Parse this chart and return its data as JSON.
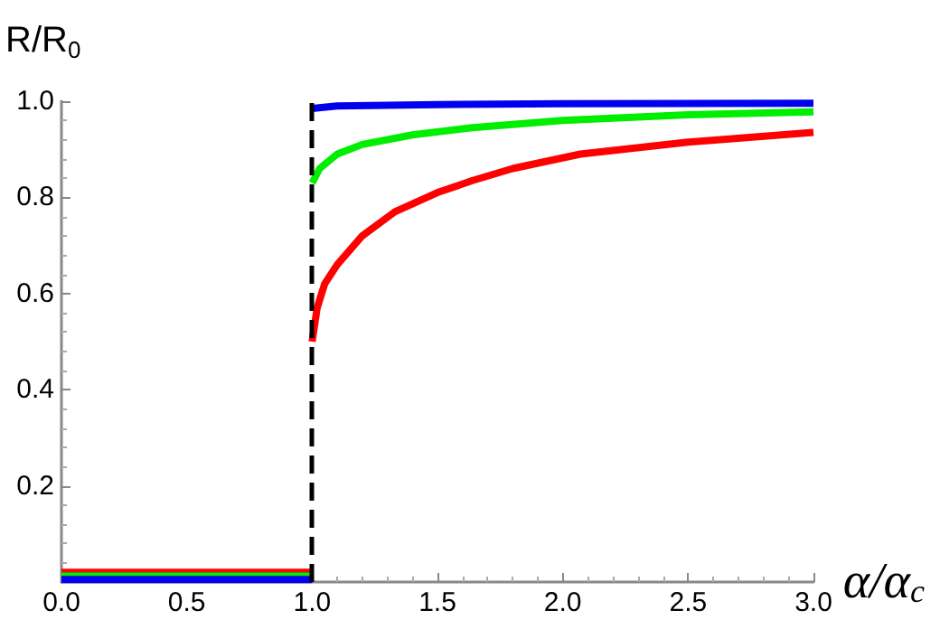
{
  "chart_data": {
    "type": "line",
    "xlabel": "α/α$_{c}$",
    "ylabel": "R/R$_{0}$",
    "xlim": [
      0,
      3
    ],
    "xticks": [
      {
        "value": 0,
        "label": "0.0"
      },
      0.5,
      {
        "value": 1,
        "label": "1.0"
      },
      1.5,
      {
        "value": 2,
        "label": "2.0"
      },
      2.5,
      {
        "value": 3,
        "label": "3.0"
      }
    ],
    "ylim": [
      0,
      1
    ],
    "yticks": [
      0.2,
      0.4,
      0.6,
      0.8,
      {
        "value": 1,
        "label": "1.0"
      }
    ],
    "grid": false,
    "marker": "none",
    "line_style": "solid",
    "series": [
      {
        "color": "#ff0000",
        "x": [
          0,
          1
        ],
        "values": [
          0.02,
          0.02
        ]
      },
      {
        "color": "#00ee00",
        "x": [
          0,
          1
        ],
        "values": [
          0.012,
          0.012
        ]
      },
      {
        "color": "#0000ee",
        "x": [
          0,
          1
        ],
        "values": [
          0.005,
          0.005
        ]
      },
      {
        "color": "#ff0000",
        "x": [
          1,
          1.02,
          1.05,
          1.1,
          1.2,
          1.33,
          1.5,
          1.64,
          1.8,
          2.07,
          2.5,
          3
        ],
        "values": [
          0.5,
          0.57,
          0.62,
          0.66,
          0.72,
          0.77,
          0.81,
          0.835,
          0.86,
          0.89,
          0.915,
          0.935
        ]
      },
      {
        "color": "#00ee00",
        "x": [
          1,
          1.03,
          1.1,
          1.2,
          1.4,
          1.64,
          2,
          2.5,
          3
        ],
        "values": [
          0.83,
          0.86,
          0.89,
          0.91,
          0.93,
          0.945,
          0.96,
          0.972,
          0.978
        ]
      },
      {
        "color": "#0000ee",
        "x": [
          1,
          1.1,
          1.5,
          2,
          3
        ],
        "values": [
          0.985,
          0.99,
          0.993,
          0.995,
          0.996
        ]
      }
    ],
    "ref_lines": [
      {
        "axis": "x",
        "value": 1,
        "color": "#000000",
        "line_style": "dashed"
      }
    ]
  }
}
